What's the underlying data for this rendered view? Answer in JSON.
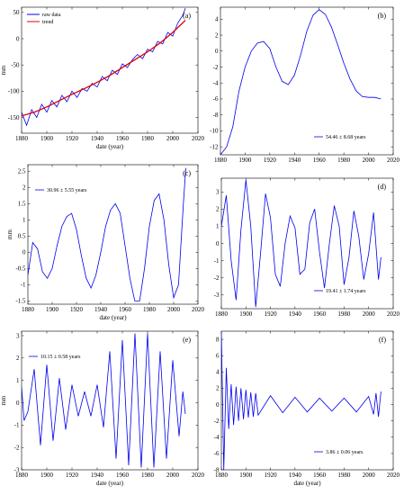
{
  "figure": {
    "line_color": "#0000ee",
    "trend_color": "#e00000"
  },
  "chart_data": [
    {
      "id": "a",
      "type": "line",
      "panel_label": "(a)",
      "xlabel": "date (year)",
      "ylabel": "mm",
      "xlim": [
        1880,
        2020
      ],
      "ylim": [
        -180,
        60
      ],
      "xticks": [
        1880,
        1900,
        1920,
        1940,
        1960,
        1980,
        2000,
        2020
      ],
      "yticks": [
        -150,
        -100,
        -50,
        0,
        50
      ],
      "annotation": "",
      "legend": {
        "position": "top-left",
        "entries": [
          {
            "name": "raw data",
            "color": "#0000ee"
          },
          {
            "name": "trend",
            "color": "#e00000"
          }
        ]
      },
      "series": [
        {
          "name": "raw data",
          "color": "#0000ee",
          "x": [
            1880,
            1884,
            1888,
            1892,
            1896,
            1900,
            1904,
            1908,
            1912,
            1916,
            1920,
            1924,
            1928,
            1932,
            1936,
            1940,
            1944,
            1948,
            1952,
            1956,
            1960,
            1964,
            1968,
            1972,
            1976,
            1980,
            1984,
            1988,
            1992,
            1996,
            2000,
            2004,
            2008,
            2010
          ],
          "y": [
            -140,
            -165,
            -135,
            -150,
            -125,
            -140,
            -118,
            -130,
            -108,
            -120,
            -100,
            -112,
            -95,
            -100,
            -85,
            -92,
            -72,
            -80,
            -60,
            -68,
            -48,
            -55,
            -40,
            -30,
            -38,
            -20,
            -25,
            -5,
            -10,
            12,
            5,
            30,
            45,
            58
          ]
        },
        {
          "name": "trend",
          "color": "#e00000",
          "x": [
            1880,
            1890,
            1900,
            1910,
            1920,
            1930,
            1940,
            1950,
            1960,
            1970,
            1980,
            1990,
            2000,
            2010
          ],
          "y": [
            -147,
            -140,
            -130,
            -118,
            -106,
            -95,
            -83,
            -70,
            -55,
            -40,
            -25,
            -8,
            12,
            35
          ]
        }
      ]
    },
    {
      "id": "b",
      "type": "line",
      "panel_label": "(b)",
      "xlabel": "",
      "ylabel": "",
      "xlim": [
        1880,
        2020
      ],
      "ylim": [
        -13,
        5.5
      ],
      "xticks": [
        1880,
        1900,
        1920,
        1940,
        1960,
        1980,
        2000,
        2020
      ],
      "yticks": [
        -12,
        -10,
        -8,
        -6,
        -4,
        -2,
        0,
        2,
        4
      ],
      "annotation": "54.46 ± 8.68 years",
      "annotation_position": "bottom-right",
      "series": [
        {
          "color": "#0000ee",
          "x": [
            1880,
            1885,
            1890,
            1895,
            1900,
            1905,
            1910,
            1915,
            1920,
            1925,
            1930,
            1935,
            1940,
            1945,
            1950,
            1955,
            1960,
            1965,
            1970,
            1975,
            1980,
            1985,
            1990,
            1995,
            2000,
            2005,
            2010
          ],
          "y": [
            -13,
            -12,
            -9.5,
            -5,
            -2,
            0,
            1,
            1.2,
            0.3,
            -2,
            -3.8,
            -4.2,
            -3,
            -0.5,
            2.5,
            4.5,
            5.2,
            4.6,
            3,
            0.8,
            -1.5,
            -3.5,
            -5,
            -5.7,
            -5.8,
            -5.8,
            -6
          ]
        }
      ]
    },
    {
      "id": "c",
      "type": "line",
      "panel_label": "(c)",
      "xlabel": "date (year)",
      "ylabel": "mm",
      "xlim": [
        1880,
        2020
      ],
      "ylim": [
        -1.6,
        2.7
      ],
      "xticks": [
        1880,
        1900,
        1920,
        1940,
        1960,
        1980,
        2000,
        2020
      ],
      "yticks": [
        -1.5,
        -1,
        -0.5,
        0,
        0.5,
        1,
        1.5,
        2,
        2.5
      ],
      "annotation": "30.96 ± 5.55 years",
      "annotation_position": "top-left",
      "series": [
        {
          "color": "#0000ee",
          "x": [
            1880,
            1884,
            1888,
            1892,
            1896,
            1900,
            1904,
            1908,
            1912,
            1916,
            1920,
            1924,
            1928,
            1932,
            1936,
            1940,
            1944,
            1948,
            1952,
            1956,
            1960,
            1964,
            1968,
            1972,
            1976,
            1980,
            1984,
            1988,
            1992,
            1996,
            2000,
            2004,
            2008,
            2010
          ],
          "y": [
            -0.7,
            0.3,
            0.1,
            -0.6,
            -0.8,
            -0.5,
            0.2,
            0.8,
            1.1,
            1.2,
            0.7,
            -0.1,
            -0.8,
            -1.1,
            -0.7,
            0,
            0.8,
            1.3,
            1.5,
            1.2,
            0.2,
            -0.8,
            -1.5,
            -1.5,
            -0.5,
            0.8,
            1.6,
            1.8,
            1.0,
            -0.4,
            -1.4,
            -1.0,
            1.5,
            2.6
          ]
        }
      ]
    },
    {
      "id": "d",
      "type": "line",
      "panel_label": "(d)",
      "xlabel": "",
      "ylabel": "",
      "xlim": [
        1880,
        2020
      ],
      "ylim": [
        -3.8,
        3.8
      ],
      "xticks": [
        1880,
        1900,
        1920,
        1940,
        1960,
        1980,
        2000,
        2020
      ],
      "yticks": [
        -3,
        -2,
        -1,
        0,
        1,
        2,
        3
      ],
      "annotation": "19.41 ± 1.74 years",
      "annotation_position": "bottom-right",
      "series": [
        {
          "color": "#0000ee",
          "x": [
            1880,
            1884,
            1888,
            1892,
            1896,
            1900,
            1904,
            1908,
            1912,
            1916,
            1920,
            1924,
            1928,
            1932,
            1936,
            1940,
            1944,
            1948,
            1952,
            1956,
            1960,
            1964,
            1968,
            1972,
            1976,
            1980,
            1984,
            1988,
            1992,
            1996,
            2000,
            2004,
            2008,
            2010
          ],
          "y": [
            1,
            2.8,
            -1,
            -3.3,
            0.8,
            3.7,
            1,
            -3.7,
            -0.5,
            2.9,
            1.5,
            -1.8,
            -2.5,
            0,
            1.6,
            0.9,
            -1.8,
            -1.5,
            1.2,
            2,
            -0.5,
            -2.6,
            0,
            2.2,
            1,
            -2.4,
            -0.8,
            1.9,
            0.4,
            -2.1,
            -0.6,
            1.8,
            -2.1,
            -0.8
          ]
        }
      ]
    },
    {
      "id": "e",
      "type": "line",
      "panel_label": "(e)",
      "xlabel": "date (year)",
      "ylabel": "mm",
      "xlim": [
        1880,
        2020
      ],
      "ylim": [
        -3,
        3.2
      ],
      "xticks": [
        1880,
        1900,
        1920,
        1940,
        1960,
        1980,
        2000,
        2020
      ],
      "yticks": [
        -3,
        -2,
        -1,
        0,
        1,
        2,
        3
      ],
      "annotation": "10.15 ± 0.58 years",
      "annotation_position": "top-left",
      "series": [
        {
          "color": "#0000ee",
          "x": [
            1880,
            1882,
            1885,
            1890,
            1895,
            1900,
            1905,
            1910,
            1915,
            1920,
            1925,
            1930,
            1935,
            1940,
            1945,
            1950,
            1955,
            1960,
            1965,
            1970,
            1975,
            1980,
            1985,
            1990,
            1995,
            2000,
            2005,
            2008,
            2010
          ],
          "y": [
            0.7,
            -0.8,
            -0.4,
            1.5,
            -1.9,
            1.7,
            -1.7,
            1.1,
            -1.2,
            0.8,
            -0.6,
            0.5,
            -0.6,
            0.8,
            -1.1,
            2.3,
            -2.5,
            2.8,
            -2.8,
            3.1,
            -2.9,
            3.1,
            -2.9,
            2.3,
            -2.5,
            1.9,
            -1.5,
            0.5,
            -0.5
          ]
        }
      ]
    },
    {
      "id": "f",
      "type": "line",
      "panel_label": "(f)",
      "xlabel": "date (year)",
      "ylabel": "",
      "xlim": [
        1880,
        2020
      ],
      "ylim": [
        -8,
        9
      ],
      "xticks": [
        1880,
        1900,
        1920,
        1940,
        1960,
        1980,
        2000,
        2020
      ],
      "yticks": [
        -8,
        -6,
        -4,
        -2,
        0,
        2,
        4,
        6,
        8
      ],
      "annotation": "3.86 ± 0.06 years",
      "annotation_position": "bottom-right",
      "series": [
        {
          "color": "#0000ee",
          "x": [
            1880,
            1882,
            1884,
            1886,
            1888,
            1890,
            1892,
            1894,
            1896,
            1898,
            1900,
            1902,
            1904,
            1906,
            1908,
            1910,
            1920,
            1930,
            1940,
            1950,
            1960,
            1970,
            1980,
            1990,
            2000,
            2004,
            2006,
            2008,
            2010
          ],
          "y": [
            9,
            -8,
            4.5,
            -3,
            2.5,
            -2.5,
            2.2,
            -2,
            2,
            -1.8,
            1.8,
            -1.6,
            1.5,
            -1.5,
            1.4,
            -1.3,
            1.1,
            -1.0,
            0.9,
            -0.9,
            0.8,
            -0.8,
            0.8,
            -0.9,
            1.0,
            -1.2,
            1.4,
            -1.5,
            1.6
          ]
        }
      ]
    }
  ]
}
